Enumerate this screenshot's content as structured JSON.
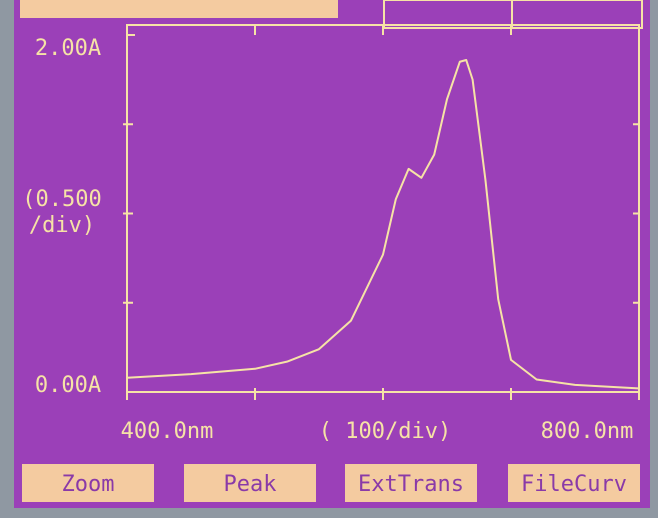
{
  "chart_data": {
    "type": "line",
    "x": [
      400,
      450,
      500,
      525,
      550,
      575,
      600,
      610,
      620,
      630,
      640,
      650,
      660,
      665,
      670,
      680,
      690,
      700,
      720,
      750,
      800
    ],
    "series": [
      {
        "color": "#f6e3a6",
        "values": [
          0.08,
          0.1,
          0.13,
          0.17,
          0.24,
          0.4,
          0.77,
          1.08,
          1.25,
          1.2,
          1.33,
          1.64,
          1.85,
          1.86,
          1.75,
          1.19,
          0.52,
          0.18,
          0.07,
          0.04,
          0.02
        ]
      }
    ],
    "xlim": [
      400,
      800
    ],
    "ylim": [
      0,
      2
    ],
    "xticks": [
      {
        "value": 400,
        "label": "400.0nm"
      },
      {
        "value": 800,
        "label": "800.0nm"
      }
    ],
    "yticks": [
      {
        "value": 0,
        "label": "0.00A"
      },
      {
        "value": 2,
        "label": "2.00A"
      }
    ],
    "xminor_ticks": [
      500,
      600,
      700
    ],
    "yminor_ticks": [
      0.5,
      1,
      1.5
    ],
    "x_scale_label": "( 100/div)",
    "y_scale_label": [
      "(0.500",
      "/div)"
    ]
  },
  "buttons": [
    "Zoom",
    "Peak",
    "ExtTrans",
    "FileCurv"
  ]
}
